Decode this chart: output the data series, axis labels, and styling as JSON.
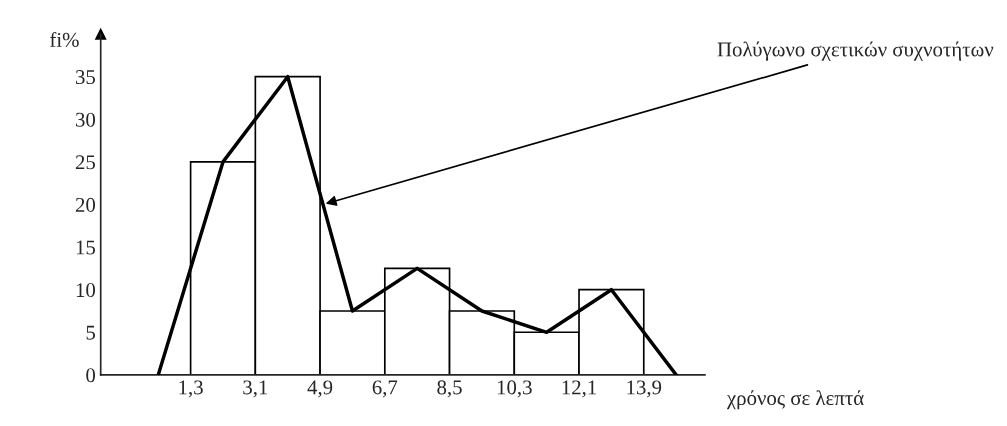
{
  "chart_data": {
    "type": "histogram",
    "ylabel": "fi%",
    "xlabel": "χρόνος σε λεπτά",
    "bins": [
      1.3,
      3.1,
      4.9,
      6.7,
      8.5,
      10.3,
      12.1,
      13.9
    ],
    "series": [
      {
        "color": "#ffffff",
        "values": [
          25,
          35,
          7.5,
          12.5,
          7.5,
          5,
          10
        ]
      },
      {
        "type": "line",
        "color": "#000000",
        "x": [
          0.4,
          2.2,
          4.0,
          5.8,
          7.6,
          9.4,
          11.2,
          13.0,
          14.8
        ],
        "values": [
          0,
          25,
          35,
          7.5,
          12.5,
          7.5,
          5,
          10,
          0
        ]
      }
    ],
    "xlim": [
      -1.2,
      15.6
    ],
    "ylim": [
      0,
      40
    ],
    "xticks": [
      {
        "value": 1.3,
        "label": "1,3"
      },
      {
        "value": 3.1,
        "label": "3,1"
      },
      {
        "value": 4.9,
        "label": "4,9"
      },
      {
        "value": 6.7,
        "label": "6,7"
      },
      {
        "value": 8.5,
        "label": "8,5"
      },
      {
        "value": 10.3,
        "label": "10,3"
      },
      {
        "value": 12.1,
        "label": "12,1"
      },
      {
        "value": 13.9,
        "label": "13,9"
      }
    ],
    "yticks": [
      0,
      5,
      10,
      15,
      20,
      25,
      30,
      35
    ],
    "grid": false,
    "annotations": [
      {
        "text": "Πολύγωνο σχετικών συχνοτήτων",
        "x": 4.98,
        "y": 20
      }
    ]
  }
}
